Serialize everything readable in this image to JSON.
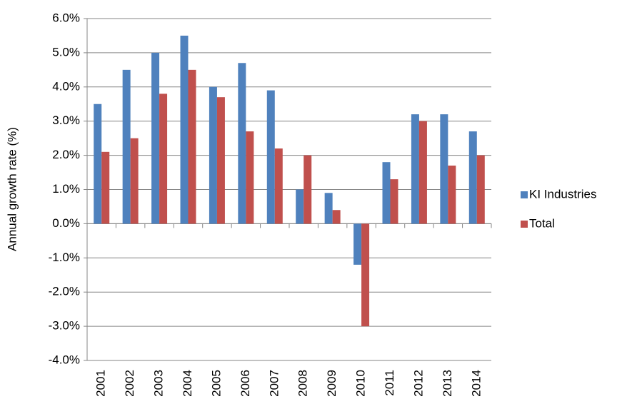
{
  "chart_data": {
    "type": "bar",
    "y_label": "Annual growth rate (%)",
    "categories": [
      "2001",
      "2002",
      "2003",
      "2004",
      "2005",
      "2006",
      "2007",
      "2008",
      "2009",
      "2010",
      "2011",
      "2012",
      "2013",
      "2014"
    ],
    "series": [
      {
        "name": "KI Industries",
        "color": "#4f81bd",
        "values": [
          3.5,
          4.5,
          5.0,
          5.5,
          4.0,
          4.7,
          3.9,
          1.0,
          0.9,
          -1.2,
          1.8,
          3.2,
          3.2,
          2.7
        ]
      },
      {
        "name": "Total",
        "color": "#c0504d",
        "values": [
          2.1,
          2.5,
          3.8,
          4.5,
          3.7,
          2.7,
          2.2,
          2.0,
          0.4,
          -3.0,
          1.3,
          3.0,
          1.7,
          2.0
        ]
      }
    ],
    "ylim": [
      -4,
      6
    ],
    "yticks": [
      {
        "value": -4,
        "label": "-4.0%"
      },
      {
        "value": -3,
        "label": "-3.0%"
      },
      {
        "value": -2,
        "label": "-2.0%"
      },
      {
        "value": -1,
        "label": "-1.0%"
      },
      {
        "value": 0,
        "label": "0.0%"
      },
      {
        "value": 1,
        "label": "1.0%"
      },
      {
        "value": 2,
        "label": "2.0%"
      },
      {
        "value": 3,
        "label": "3.0%"
      },
      {
        "value": 4,
        "label": "4.0%"
      },
      {
        "value": 5,
        "label": "5.0%"
      },
      {
        "value": 6,
        "label": "6.0%"
      }
    ],
    "grid": true,
    "legend": "right"
  }
}
